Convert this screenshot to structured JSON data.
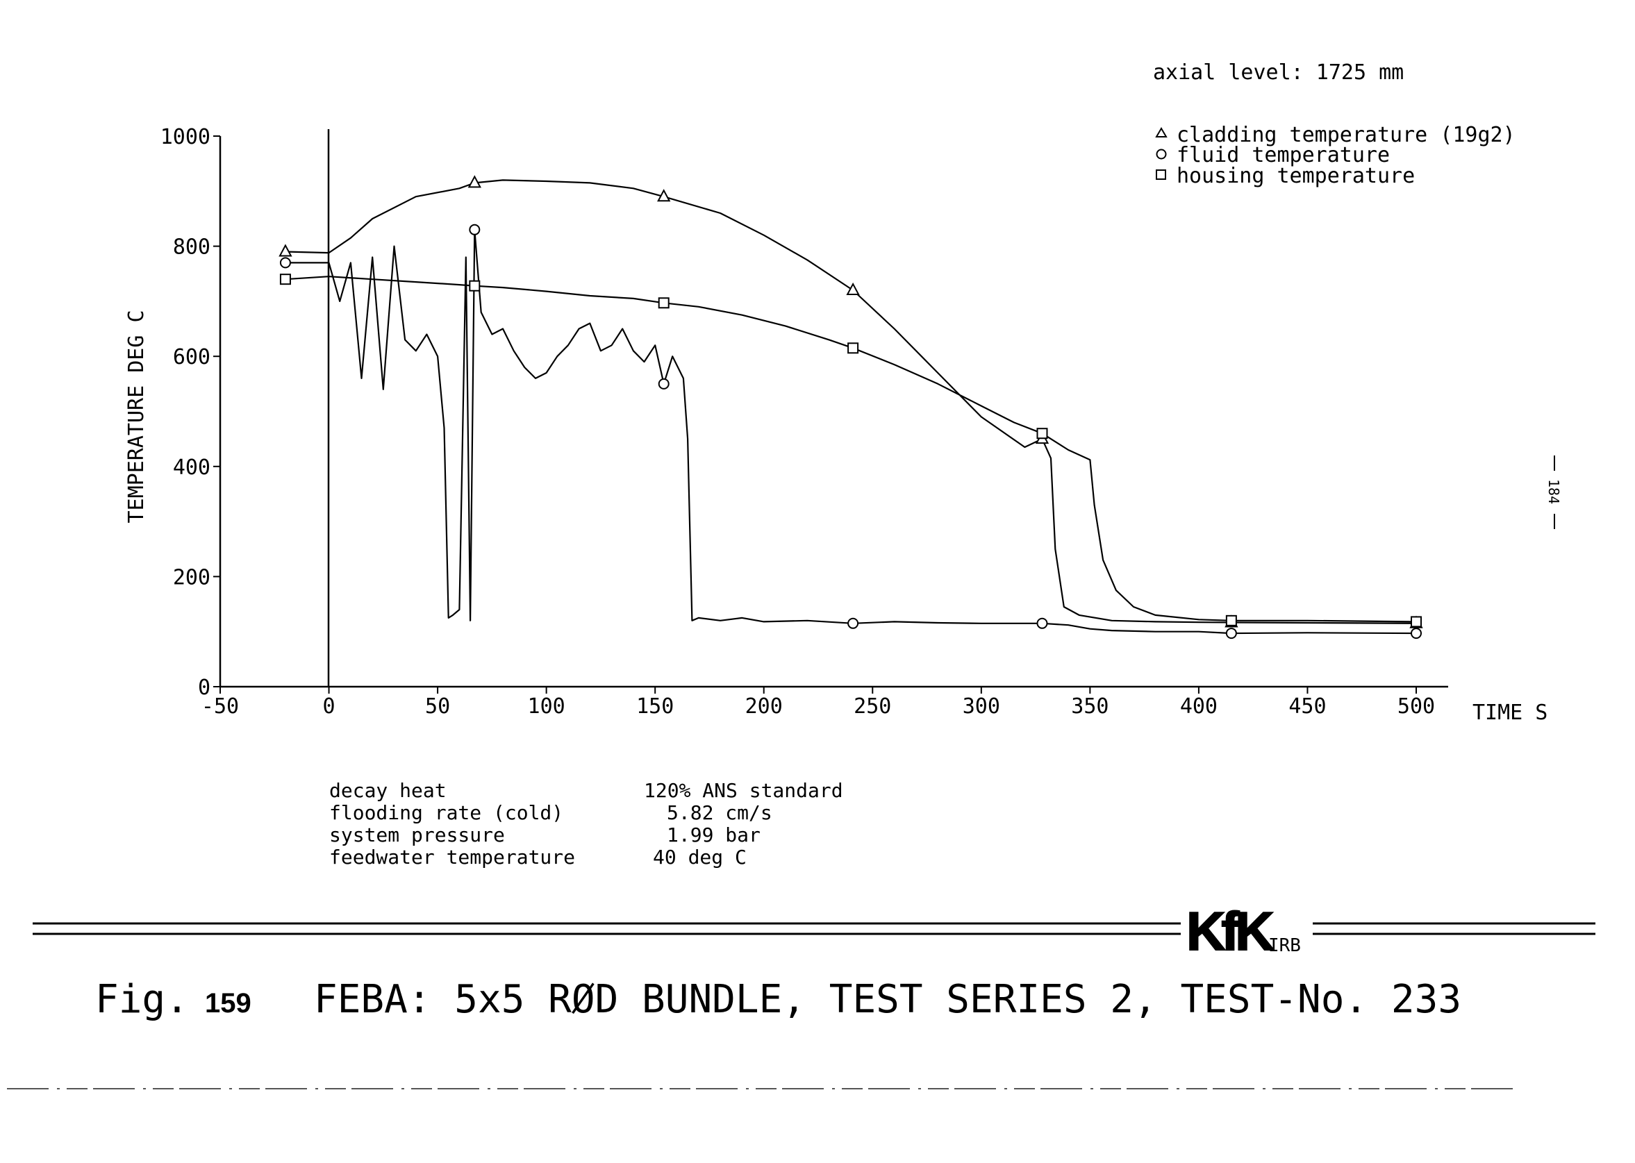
{
  "axial_level": "axial level: 1725 mm",
  "legend": [
    {
      "symbol": "triangle",
      "label": "cladding temperature (19g2)"
    },
    {
      "symbol": "circle",
      "label": "fluid temperature"
    },
    {
      "symbol": "square",
      "label": "housing temperature"
    }
  ],
  "params": [
    {
      "name": "decay heat",
      "value": "120% ANS standard"
    },
    {
      "name": "flooding rate (cold)",
      "value": "5.82 cm/s"
    },
    {
      "name": "system pressure",
      "value": "1.99 bar"
    },
    {
      "name": "feedwater temperature",
      "value": "40 deg C"
    }
  ],
  "side_page_number": "184",
  "logo": {
    "mark": "KfK",
    "sub": "IRB"
  },
  "caption": {
    "fig": "Fig.",
    "num": "159",
    "text": "FEBA: 5x5 RØD BUNDLE, TEST SERIES 2, TEST-No. 233"
  },
  "chart_data": {
    "type": "line",
    "title": "",
    "xlabel": "TIME S",
    "ylabel": "TEMPERATURE DEG C",
    "xlim": [
      -50,
      500
    ],
    "ylim": [
      0,
      1000
    ],
    "xticks": [
      -50,
      0,
      50,
      100,
      150,
      200,
      250,
      300,
      350,
      400,
      450,
      500
    ],
    "yticks": [
      0,
      200,
      400,
      600,
      800,
      1000
    ],
    "grid": false,
    "legend_position": "top-right",
    "series": [
      {
        "name": "cladding temperature (19g2)",
        "marker": "triangle",
        "x": [
          -20,
          0,
          10,
          20,
          40,
          60,
          67,
          80,
          100,
          120,
          140,
          154,
          180,
          200,
          220,
          241,
          260,
          280,
          300,
          320,
          328,
          332,
          334,
          338,
          345,
          360,
          380,
          400,
          450,
          500
        ],
        "y": [
          790,
          788,
          815,
          850,
          890,
          905,
          915,
          920,
          918,
          915,
          905,
          890,
          860,
          820,
          775,
          720,
          650,
          570,
          490,
          435,
          450,
          415,
          250,
          145,
          130,
          120,
          118,
          117,
          116,
          115
        ],
        "markers_at": [
          -20,
          67,
          154,
          241,
          328,
          415,
          500
        ]
      },
      {
        "name": "fluid temperature",
        "marker": "circle",
        "x": [
          -20,
          0,
          5,
          10,
          15,
          20,
          25,
          30,
          35,
          40,
          45,
          50,
          53,
          55,
          57,
          60,
          63,
          65,
          67,
          70,
          75,
          80,
          85,
          90,
          95,
          100,
          105,
          110,
          115,
          120,
          125,
          130,
          135,
          140,
          145,
          150,
          154,
          158,
          163,
          165,
          167,
          170,
          180,
          190,
          200,
          220,
          241,
          260,
          280,
          300,
          320,
          328,
          340,
          350,
          360,
          380,
          400,
          415,
          450,
          500
        ],
        "y": [
          770,
          770,
          700,
          770,
          560,
          780,
          540,
          800,
          630,
          610,
          640,
          600,
          470,
          125,
          130,
          140,
          780,
          120,
          830,
          680,
          640,
          650,
          610,
          580,
          560,
          570,
          600,
          620,
          650,
          660,
          610,
          620,
          650,
          610,
          590,
          620,
          550,
          600,
          560,
          450,
          120,
          125,
          120,
          125,
          118,
          120,
          115,
          118,
          116,
          115,
          115,
          115,
          112,
          105,
          102,
          100,
          100,
          97,
          98,
          97
        ],
        "markers_at": [
          -20,
          67,
          154,
          241,
          328,
          415,
          500
        ]
      },
      {
        "name": "housing temperature",
        "marker": "square",
        "x": [
          -20,
          0,
          20,
          40,
          60,
          67,
          80,
          100,
          120,
          140,
          154,
          170,
          190,
          210,
          230,
          241,
          260,
          280,
          300,
          315,
          328,
          340,
          350,
          352,
          356,
          362,
          370,
          380,
          400,
          415,
          450,
          500
        ],
        "y": [
          740,
          745,
          740,
          735,
          730,
          728,
          725,
          718,
          710,
          705,
          697,
          690,
          675,
          655,
          630,
          615,
          585,
          550,
          510,
          480,
          460,
          430,
          412,
          330,
          230,
          175,
          145,
          130,
          122,
          120,
          120,
          118
        ],
        "markers_at": [
          -20,
          67,
          154,
          241,
          328,
          415,
          500
        ]
      }
    ]
  }
}
